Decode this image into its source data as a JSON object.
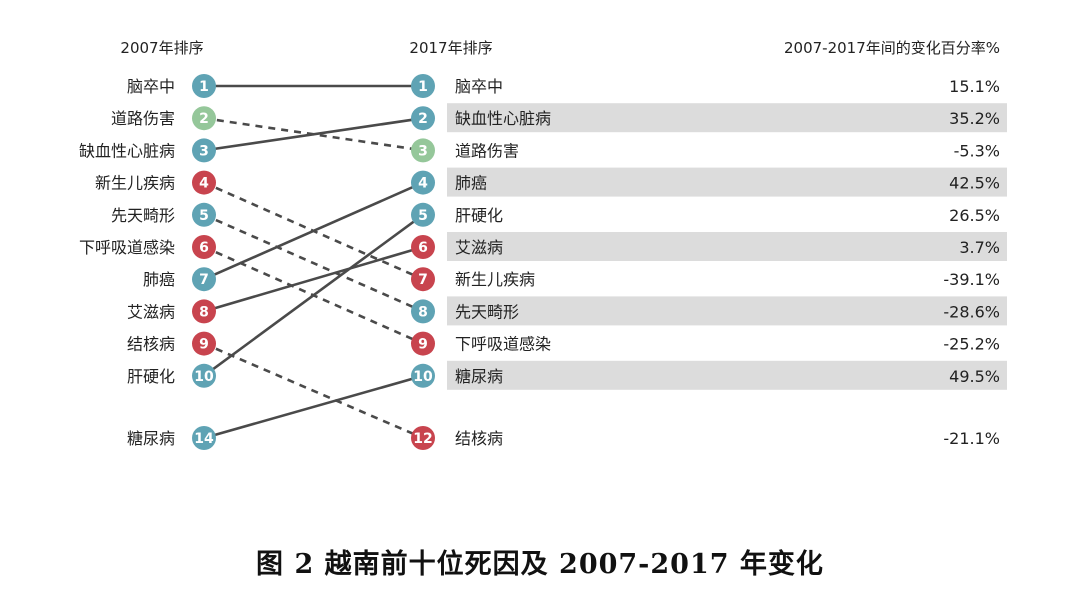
{
  "chart_data": {
    "type": "bump",
    "headers": {
      "left": "2007年排序",
      "middle": "2017年排序",
      "right": "2007-2017年间的变化百分率%"
    },
    "rows_2017": [
      {
        "rank": "1",
        "name": "脑卒中",
        "change": "15.1%",
        "rank_2007": 1,
        "category": "ncd"
      },
      {
        "rank": "2",
        "name": "缺血性心脏病",
        "change": "35.2%",
        "rank_2007": 3,
        "category": "ncd"
      },
      {
        "rank": "3",
        "name": "道路伤害",
        "change": "-5.3%",
        "rank_2007": 2,
        "category": "injury"
      },
      {
        "rank": "4",
        "name": "肺癌",
        "change": "42.5%",
        "rank_2007": 7,
        "category": "ncd"
      },
      {
        "rank": "5",
        "name": "肝硬化",
        "change": "26.5%",
        "rank_2007": 10,
        "category": "ncd"
      },
      {
        "rank": "6",
        "name": "艾滋病",
        "change": "3.7%",
        "rank_2007": 8,
        "category": "communicable"
      },
      {
        "rank": "7",
        "name": "新生儿疾病",
        "change": "-39.1%",
        "rank_2007": 4,
        "category": "communicable"
      },
      {
        "rank": "8",
        "name": "先天畸形",
        "change": "-28.6%",
        "rank_2007": 5,
        "category": "ncd"
      },
      {
        "rank": "9",
        "name": "下呼吸道感染",
        "change": "-25.2%",
        "rank_2007": 6,
        "category": "communicable"
      },
      {
        "rank": "10",
        "name": "糖尿病",
        "change": "49.5%",
        "rank_2007": 14,
        "category": "ncd"
      },
      {
        "rank": "12",
        "name": "结核病",
        "change": "-21.1%",
        "rank_2007": 9,
        "category": "communicable"
      }
    ],
    "rows_2007": [
      {
        "rank": "1",
        "name": "脑卒中",
        "category": "ncd"
      },
      {
        "rank": "2",
        "name": "道路伤害",
        "category": "injury"
      },
      {
        "rank": "3",
        "name": "缺血性心脏病",
        "category": "ncd"
      },
      {
        "rank": "4",
        "name": "新生儿疾病",
        "category": "communicable"
      },
      {
        "rank": "5",
        "name": "先天畸形",
        "category": "ncd"
      },
      {
        "rank": "6",
        "name": "下呼吸道感染",
        "category": "communicable"
      },
      {
        "rank": "7",
        "name": "肺癌",
        "category": "ncd"
      },
      {
        "rank": "8",
        "name": "艾滋病",
        "category": "communicable"
      },
      {
        "rank": "9",
        "name": "结核病",
        "category": "communicable"
      },
      {
        "rank": "10",
        "name": "肝硬化",
        "category": "ncd"
      },
      {
        "rank": "14",
        "name": "糖尿病",
        "category": "ncd"
      }
    ],
    "colors": {
      "ncd": "#5fa3b4",
      "communicable": "#c8444e",
      "injury": "#95c79a",
      "row_shade": "#dcdcdc",
      "line": "#4a4a4a"
    },
    "line_style": {
      "rising_or_same": "solid",
      "falling": "dashed"
    }
  },
  "caption": "图 2  越南前十位死因及 2007-2017 年变化"
}
